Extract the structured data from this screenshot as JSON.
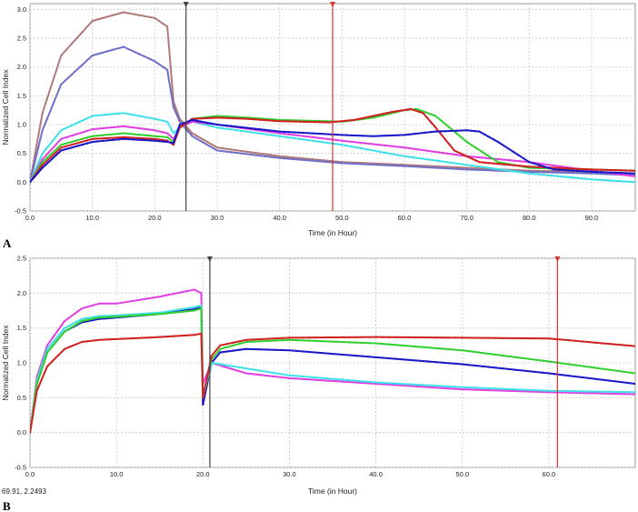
{
  "chart_data": [
    {
      "type": "line",
      "panel_label": "A",
      "xlabel": "Time (in Hour)",
      "ylabel": "Normalized Cell Index",
      "xlim": [
        0,
        97
      ],
      "ylim": [
        -0.5,
        3.1
      ],
      "x_ticks": [
        "0.0",
        "10.0",
        "20.0",
        "30.0",
        "40.0",
        "50.0",
        "60.0",
        "70.0",
        "80.0",
        "90.0"
      ],
      "y_ticks": [
        "-0.5",
        "0.0",
        "0.5",
        "1.0",
        "1.5",
        "2.0",
        "2.5",
        "3.0"
      ],
      "grid": true,
      "markers": [
        {
          "x": 25,
          "color": "#444444"
        },
        {
          "x": 48.5,
          "color": "#e03030"
        }
      ],
      "series": [
        {
          "name": "brown",
          "color": "#b07a78",
          "x": [
            0,
            2,
            5,
            10,
            15,
            20,
            22,
            23,
            24,
            26,
            30,
            40,
            50,
            60,
            70,
            80,
            90,
            97
          ],
          "y": [
            0,
            1.2,
            2.2,
            2.8,
            2.95,
            2.85,
            2.7,
            1.4,
            1.1,
            0.85,
            0.6,
            0.45,
            0.35,
            0.3,
            0.25,
            0.2,
            0.18,
            0.15
          ]
        },
        {
          "name": "purple",
          "color": "#7070c8",
          "x": [
            0,
            2,
            5,
            10,
            15,
            20,
            22,
            23,
            24,
            26,
            30,
            40,
            50,
            60,
            70,
            80,
            90,
            97
          ],
          "y": [
            0,
            0.9,
            1.7,
            2.2,
            2.35,
            2.1,
            1.95,
            1.3,
            1.05,
            0.8,
            0.55,
            0.42,
            0.33,
            0.28,
            0.22,
            0.18,
            0.15,
            0.12
          ]
        },
        {
          "name": "cyan",
          "color": "#40e0e8",
          "x": [
            0,
            2,
            5,
            10,
            15,
            20,
            22,
            23,
            24,
            26,
            30,
            40,
            50,
            60,
            70,
            80,
            90,
            97
          ],
          "y": [
            0,
            0.5,
            0.9,
            1.15,
            1.2,
            1.1,
            1.05,
            0.85,
            0.95,
            1.05,
            0.95,
            0.8,
            0.65,
            0.45,
            0.3,
            0.15,
            0.05,
            0.0
          ]
        },
        {
          "name": "magenta",
          "color": "#e040e0",
          "x": [
            0,
            2,
            5,
            10,
            15,
            20,
            22,
            23,
            24,
            26,
            30,
            40,
            50,
            60,
            70,
            80,
            90,
            97
          ],
          "y": [
            0,
            0.4,
            0.75,
            0.92,
            0.97,
            0.9,
            0.85,
            0.75,
            0.95,
            1.05,
            1.0,
            0.85,
            0.72,
            0.6,
            0.45,
            0.35,
            0.2,
            0.1
          ]
        },
        {
          "name": "green",
          "color": "#30d030",
          "x": [
            0,
            2,
            5,
            10,
            15,
            20,
            22,
            23,
            24,
            26,
            30,
            35,
            40,
            50,
            55,
            60,
            62,
            65,
            70,
            75,
            80,
            90,
            97
          ],
          "y": [
            0,
            0.35,
            0.65,
            0.8,
            0.85,
            0.8,
            0.78,
            0.7,
            0.95,
            1.1,
            1.15,
            1.12,
            1.08,
            1.05,
            1.12,
            1.25,
            1.27,
            1.15,
            0.7,
            0.35,
            0.25,
            0.22,
            0.2
          ]
        },
        {
          "name": "red",
          "color": "#d02020",
          "x": [
            0,
            2,
            5,
            10,
            15,
            20,
            22,
            23,
            24,
            26,
            30,
            35,
            40,
            48,
            52,
            55,
            58,
            61,
            63,
            65,
            68,
            72,
            80,
            90,
            97
          ],
          "y": [
            0,
            0.3,
            0.6,
            0.75,
            0.78,
            0.75,
            0.72,
            0.65,
            0.95,
            1.1,
            1.12,
            1.1,
            1.06,
            1.04,
            1.08,
            1.15,
            1.22,
            1.27,
            1.2,
            0.95,
            0.55,
            0.35,
            0.27,
            0.22,
            0.2
          ]
        },
        {
          "name": "blue",
          "color": "#1818c8",
          "x": [
            0,
            2,
            5,
            10,
            15,
            20,
            22,
            23,
            24,
            26,
            30,
            40,
            50,
            55,
            60,
            65,
            70,
            72,
            75,
            80,
            84,
            90,
            97
          ],
          "y": [
            0,
            0.25,
            0.55,
            0.7,
            0.75,
            0.72,
            0.7,
            0.68,
            1.0,
            1.08,
            1.0,
            0.88,
            0.82,
            0.8,
            0.82,
            0.88,
            0.9,
            0.88,
            0.7,
            0.35,
            0.22,
            0.18,
            0.15
          ]
        }
      ]
    },
    {
      "type": "line",
      "panel_label": "B",
      "xlabel": "Time (in Hour)",
      "ylabel": "Normalized Cell Index",
      "xlim": [
        0,
        70
      ],
      "ylim": [
        -0.5,
        2.5
      ],
      "x_ticks": [
        "0.0",
        "10.0",
        "20.0",
        "30.0",
        "40.0",
        "50.0",
        "60.0"
      ],
      "y_ticks": [
        "-0.5",
        "0.0",
        "0.5",
        "1.0",
        "1.5",
        "2.0",
        "2.5"
      ],
      "grid": true,
      "coordinate_readout": "69.91, 2.2493",
      "markers": [
        {
          "x": 20.8,
          "color": "#444444"
        },
        {
          "x": 61,
          "color": "#e03030"
        }
      ],
      "series": [
        {
          "name": "magenta",
          "color": "#e040e0",
          "x": [
            0,
            0.8,
            2,
            4,
            6,
            8,
            10,
            15,
            19,
            19.8,
            20,
            21,
            25,
            30,
            40,
            50,
            60,
            70
          ],
          "y": [
            0,
            0.8,
            1.25,
            1.6,
            1.78,
            1.85,
            1.85,
            1.95,
            2.05,
            2.0,
            0.7,
            1.0,
            0.85,
            0.78,
            0.7,
            0.62,
            0.58,
            0.55
          ]
        },
        {
          "name": "blue",
          "color": "#1818c8",
          "x": [
            0,
            0.8,
            2,
            4,
            6,
            8,
            10,
            15,
            19,
            19.8,
            20,
            21,
            22,
            25,
            30,
            40,
            50,
            60,
            70
          ],
          "y": [
            0,
            0.7,
            1.15,
            1.45,
            1.58,
            1.63,
            1.65,
            1.7,
            1.77,
            1.8,
            0.4,
            1.0,
            1.15,
            1.2,
            1.18,
            1.08,
            0.98,
            0.85,
            0.7
          ]
        },
        {
          "name": "cyan",
          "color": "#40e0e8",
          "x": [
            0,
            0.8,
            2,
            4,
            6,
            8,
            10,
            15,
            19,
            19.8,
            20,
            21,
            25,
            30,
            40,
            50,
            60,
            70
          ],
          "y": [
            0,
            0.75,
            1.2,
            1.5,
            1.63,
            1.67,
            1.68,
            1.72,
            1.8,
            1.82,
            0.5,
            1.0,
            0.92,
            0.82,
            0.72,
            0.65,
            0.6,
            0.58
          ]
        },
        {
          "name": "green",
          "color": "#30d030",
          "x": [
            0,
            0.8,
            2,
            4,
            6,
            8,
            10,
            15,
            19,
            19.8,
            20,
            21,
            22,
            25,
            30,
            40,
            50,
            60,
            70
          ],
          "y": [
            0,
            0.7,
            1.15,
            1.45,
            1.6,
            1.65,
            1.66,
            1.7,
            1.75,
            1.78,
            0.5,
            1.05,
            1.2,
            1.3,
            1.33,
            1.28,
            1.18,
            1.02,
            0.85
          ]
        },
        {
          "name": "red",
          "color": "#d02020",
          "x": [
            0,
            0.8,
            2,
            4,
            6,
            8,
            10,
            15,
            19,
            19.8,
            20,
            21,
            22,
            25,
            30,
            40,
            50,
            60,
            70
          ],
          "y": [
            0,
            0.6,
            0.95,
            1.2,
            1.3,
            1.33,
            1.34,
            1.37,
            1.4,
            1.42,
            0.5,
            1.1,
            1.25,
            1.33,
            1.36,
            1.37,
            1.36,
            1.35,
            1.24
          ]
        }
      ]
    }
  ]
}
